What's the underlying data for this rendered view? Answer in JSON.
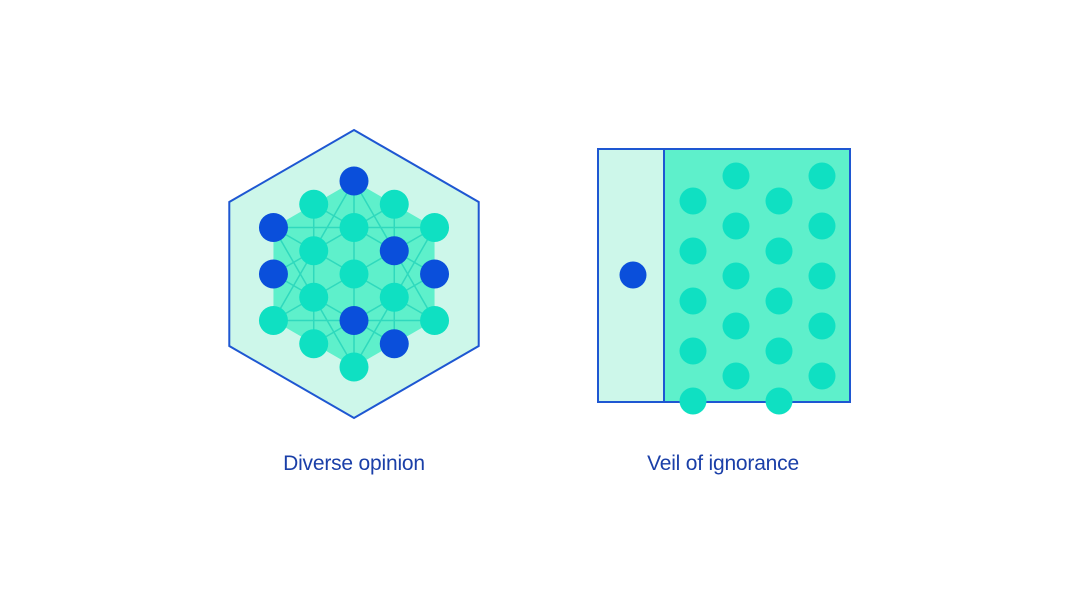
{
  "colors": {
    "outline": "#1e57d2",
    "dark_node": "#0a4fdb",
    "light_node": "#0fe0c2",
    "fill_light": "#cdf7ea",
    "fill_mid": "#5ef0cb",
    "grid_line": "#2fd9bd",
    "caption": "#1a3fa8"
  },
  "diagrams": [
    {
      "id": "diverse-opinion",
      "caption": "Diverse opinion",
      "shape": "hexagon",
      "dark_node_count": 7,
      "light_node_count": 12
    },
    {
      "id": "veil-of-ignorance",
      "caption": "Veil of ignorance",
      "shape": "square",
      "dark_node_count": 1,
      "light_node_count": 20
    }
  ]
}
